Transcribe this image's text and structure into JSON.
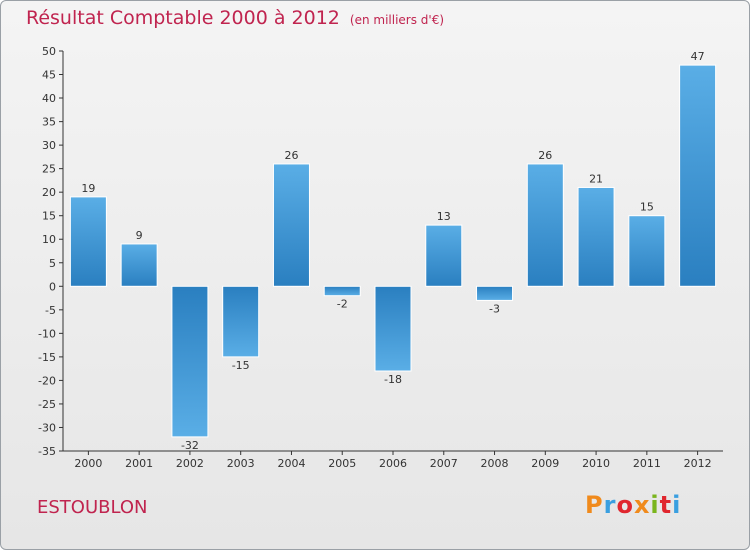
{
  "chart_data": {
    "type": "bar",
    "title": "Résultat Comptable 2000 à 2012",
    "unit": "(en milliers d'€)",
    "categories": [
      "2000",
      "2001",
      "2002",
      "2003",
      "2004",
      "2005",
      "2006",
      "2007",
      "2008",
      "2009",
      "2010",
      "2011",
      "2012"
    ],
    "values": [
      19,
      9,
      -32,
      -15,
      26,
      -2,
      -18,
      13,
      -3,
      26,
      21,
      15,
      47
    ],
    "ylim": [
      -35,
      50
    ],
    "ytick_step": 5,
    "grid": false,
    "xlabel": "",
    "ylabel": ""
  },
  "footer": {
    "town": "ESTOUBLON",
    "brand": "Proxiti"
  },
  "colors": {
    "title": "#c0244f",
    "bar_light": "#5aaee6",
    "bar_dark": "#2a7fc0",
    "axis": "#333333",
    "brand_letters": [
      "#f08a1c",
      "#3a9fe0",
      "#e0262e",
      "#f08a1c",
      "#7ab51d",
      "#e0262e",
      "#3a9fe0"
    ]
  }
}
